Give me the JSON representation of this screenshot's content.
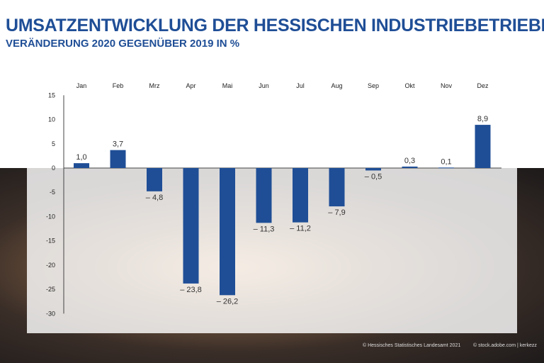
{
  "title": "UMSATZENTWICKLUNG DER HESSISCHEN INDUSTRIEBETRIEBE",
  "subtitle": "VERÄNDERUNG 2020 GEGENÜBER 2019 IN %",
  "credits": [
    "© Hessisches Statistisches Landesamt 2021",
    "© stock.adobe.com | kerkezz"
  ],
  "chart_data": {
    "type": "bar",
    "categories": [
      "Jan",
      "Feb",
      "Mrz",
      "Apr",
      "Mai",
      "Jun",
      "Jul",
      "Aug",
      "Sep",
      "Okt",
      "Nov",
      "Dez"
    ],
    "values": [
      1.0,
      3.7,
      -4.8,
      -23.8,
      -26.2,
      -11.3,
      -11.2,
      -7.9,
      -0.5,
      0.3,
      0.1,
      8.9
    ],
    "labels": [
      "1,0",
      "3,7",
      "– 4,8",
      "– 23,8",
      "– 26,2",
      "– 11,3",
      "– 11,2",
      "– 7,9",
      "– 0,5",
      "0,3",
      "0,1",
      "8,9"
    ],
    "ylim": [
      -30,
      15
    ],
    "yticks": [
      15,
      10,
      5,
      0,
      -5,
      -10,
      -15,
      -20,
      -25,
      -30
    ],
    "bar_color": "#1f4e96",
    "grid": false
  }
}
